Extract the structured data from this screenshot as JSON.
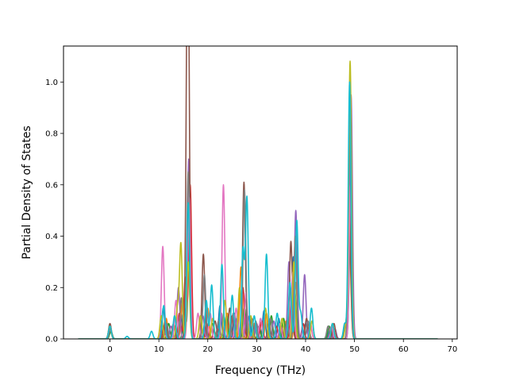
{
  "chart_data": {
    "type": "line",
    "title": "",
    "xlabel": "Frequency (THz)",
    "ylabel": "Partial Density of States",
    "xlim": [
      -9.5,
      71.0
    ],
    "ylim": [
      0.0,
      1.14
    ],
    "xticks": [
      0,
      10,
      20,
      30,
      40,
      50,
      60,
      70
    ],
    "xtick_labels": [
      "0",
      "10",
      "20",
      "30",
      "40",
      "50",
      "60",
      "70"
    ],
    "yticks": [
      0.0,
      0.2,
      0.4,
      0.6,
      0.8,
      1.0
    ],
    "ytick_labels": [
      "0.0",
      "0.2",
      "0.4",
      "0.6",
      "0.8",
      "1.0"
    ],
    "grid": false,
    "legend": "none",
    "x_range_of_data": [
      -6.5,
      67.0
    ],
    "series": [
      {
        "color": "#1f77b4",
        "peaks": [
          [
            0,
            0.05
          ],
          [
            10.9,
            0.12
          ],
          [
            14.5,
            0.1
          ],
          [
            16.0,
            0.4
          ],
          [
            19.5,
            0.08
          ],
          [
            22.5,
            0.13
          ],
          [
            25.5,
            0.1
          ],
          [
            28.5,
            0.09
          ],
          [
            31.5,
            0.11
          ],
          [
            34.5,
            0.08
          ],
          [
            37.5,
            0.32
          ],
          [
            40.0,
            0.06
          ],
          [
            45.0,
            0.04
          ],
          [
            48.1,
            0.05
          ],
          [
            49.1,
            0.9
          ]
        ]
      },
      {
        "color": "#ff7f0e",
        "peaks": [
          [
            0,
            0.04
          ],
          [
            11.5,
            0.08
          ],
          [
            14.8,
            0.15
          ],
          [
            16.1,
            0.45
          ],
          [
            20.0,
            0.12
          ],
          [
            24.0,
            0.1
          ],
          [
            26.8,
            0.28
          ],
          [
            29.5,
            0.06
          ],
          [
            32.0,
            0.1
          ],
          [
            36.0,
            0.07
          ],
          [
            38.0,
            0.22
          ],
          [
            41.0,
            0.05
          ],
          [
            45.5,
            0.06
          ],
          [
            49.0,
            0.35
          ]
        ]
      },
      {
        "color": "#2ca02c",
        "peaks": [
          [
            0.2,
            0.03
          ],
          [
            12.0,
            0.06
          ],
          [
            15.2,
            0.12
          ],
          [
            16.3,
            0.5
          ],
          [
            21.0,
            0.06
          ],
          [
            23.8,
            0.09
          ],
          [
            27.5,
            0.12
          ],
          [
            30.5,
            0.05
          ],
          [
            33.0,
            0.09
          ],
          [
            35.5,
            0.08
          ],
          [
            37.8,
            0.18
          ],
          [
            44.8,
            0.05
          ],
          [
            49.2,
            0.45
          ]
        ]
      },
      {
        "color": "#d62728",
        "peaks": [
          [
            0,
            0.05
          ],
          [
            11.0,
            0.05
          ],
          [
            14.2,
            0.1
          ],
          [
            15.4,
            0.24
          ],
          [
            16.4,
            0.6
          ],
          [
            19.8,
            0.06
          ],
          [
            22.0,
            0.04
          ],
          [
            25.0,
            0.09
          ],
          [
            27.2,
            0.2
          ],
          [
            31.0,
            0.07
          ],
          [
            34.0,
            0.05
          ],
          [
            37.2,
            0.2
          ],
          [
            39.5,
            0.06
          ],
          [
            45.2,
            0.04
          ],
          [
            49.1,
            0.5
          ]
        ]
      },
      {
        "color": "#9467bd",
        "peaks": [
          [
            0.1,
            0.04
          ],
          [
            12.5,
            0.05
          ],
          [
            14.0,
            0.2
          ],
          [
            16.1,
            0.7
          ],
          [
            19.0,
            0.09
          ],
          [
            22.8,
            0.1
          ],
          [
            26.0,
            0.08
          ],
          [
            28.0,
            0.1
          ],
          [
            30.0,
            0.06
          ],
          [
            33.5,
            0.07
          ],
          [
            36.6,
            0.3
          ],
          [
            38.0,
            0.5
          ],
          [
            39.8,
            0.25
          ],
          [
            46.0,
            0.04
          ],
          [
            49.3,
            0.95
          ]
        ]
      },
      {
        "color": "#8c564b",
        "peaks": [
          [
            0,
            0.06
          ],
          [
            11.3,
            0.07
          ],
          [
            13.0,
            0.06
          ],
          [
            15.8,
            0.8
          ],
          [
            16.0,
            1.0
          ],
          [
            19.1,
            0.33
          ],
          [
            21.5,
            0.07
          ],
          [
            24.5,
            0.12
          ],
          [
            27.4,
            0.61
          ],
          [
            29.0,
            0.08
          ],
          [
            32.5,
            0.06
          ],
          [
            35.0,
            0.05
          ],
          [
            37.0,
            0.38
          ],
          [
            40.2,
            0.08
          ],
          [
            45.8,
            0.06
          ],
          [
            49.0,
            0.41
          ]
        ]
      },
      {
        "color": "#e377c2",
        "peaks": [
          [
            0,
            0.05
          ],
          [
            10.8,
            0.36
          ],
          [
            13.5,
            0.15
          ],
          [
            16.2,
            0.55
          ],
          [
            18.0,
            0.1
          ],
          [
            20.5,
            0.1
          ],
          [
            23.2,
            0.6
          ],
          [
            25.8,
            0.12
          ],
          [
            27.8,
            0.18
          ],
          [
            30.8,
            0.08
          ],
          [
            34.8,
            0.06
          ],
          [
            37.4,
            0.26
          ],
          [
            41.0,
            0.06
          ],
          [
            45.3,
            0.05
          ],
          [
            49.2,
            0.6
          ]
        ]
      },
      {
        "color": "#7f7f7f",
        "peaks": [
          [
            0,
            0.04
          ],
          [
            11.6,
            0.06
          ],
          [
            14.6,
            0.16
          ],
          [
            16.0,
            0.65
          ],
          [
            19.3,
            0.25
          ],
          [
            22.2,
            0.07
          ],
          [
            25.2,
            0.1
          ],
          [
            27.5,
            0.58
          ],
          [
            29.8,
            0.07
          ],
          [
            32.8,
            0.08
          ],
          [
            36.2,
            0.07
          ],
          [
            37.9,
            0.4
          ],
          [
            40.5,
            0.07
          ],
          [
            44.6,
            0.05
          ],
          [
            49.0,
            0.8
          ]
        ]
      },
      {
        "color": "#bcbd22",
        "peaks": [
          [
            0,
            0.05
          ],
          [
            10.5,
            0.09
          ],
          [
            13.8,
            0.12
          ],
          [
            14.5,
            0.37
          ],
          [
            16.0,
            0.3
          ],
          [
            18.5,
            0.09
          ],
          [
            21.0,
            0.08
          ],
          [
            23.5,
            0.15
          ],
          [
            26.5,
            0.2
          ],
          [
            28.8,
            0.09
          ],
          [
            31.8,
            0.12
          ],
          [
            35.2,
            0.08
          ],
          [
            37.6,
            0.3
          ],
          [
            41.3,
            0.07
          ],
          [
            45.5,
            0.06
          ],
          [
            48.3,
            0.06
          ],
          [
            49.1,
            1.08
          ]
        ]
      },
      {
        "color": "#17becf",
        "peaks": [
          [
            0,
            0.05
          ],
          [
            3.5,
            0.01
          ],
          [
            8.5,
            0.03
          ],
          [
            11.0,
            0.13
          ],
          [
            13.2,
            0.09
          ],
          [
            16.0,
            0.53
          ],
          [
            19.7,
            0.15
          ],
          [
            20.8,
            0.21
          ],
          [
            22.9,
            0.29
          ],
          [
            25.0,
            0.17
          ],
          [
            27.2,
            0.35
          ],
          [
            28.0,
            0.55
          ],
          [
            29.5,
            0.09
          ],
          [
            32.0,
            0.33
          ],
          [
            34.2,
            0.1
          ],
          [
            36.8,
            0.22
          ],
          [
            38.2,
            0.46
          ],
          [
            39.0,
            0.1
          ],
          [
            41.2,
            0.12
          ],
          [
            45.5,
            0.06
          ],
          [
            48.0,
            0.06
          ],
          [
            49.0,
            1.0
          ]
        ]
      }
    ]
  }
}
